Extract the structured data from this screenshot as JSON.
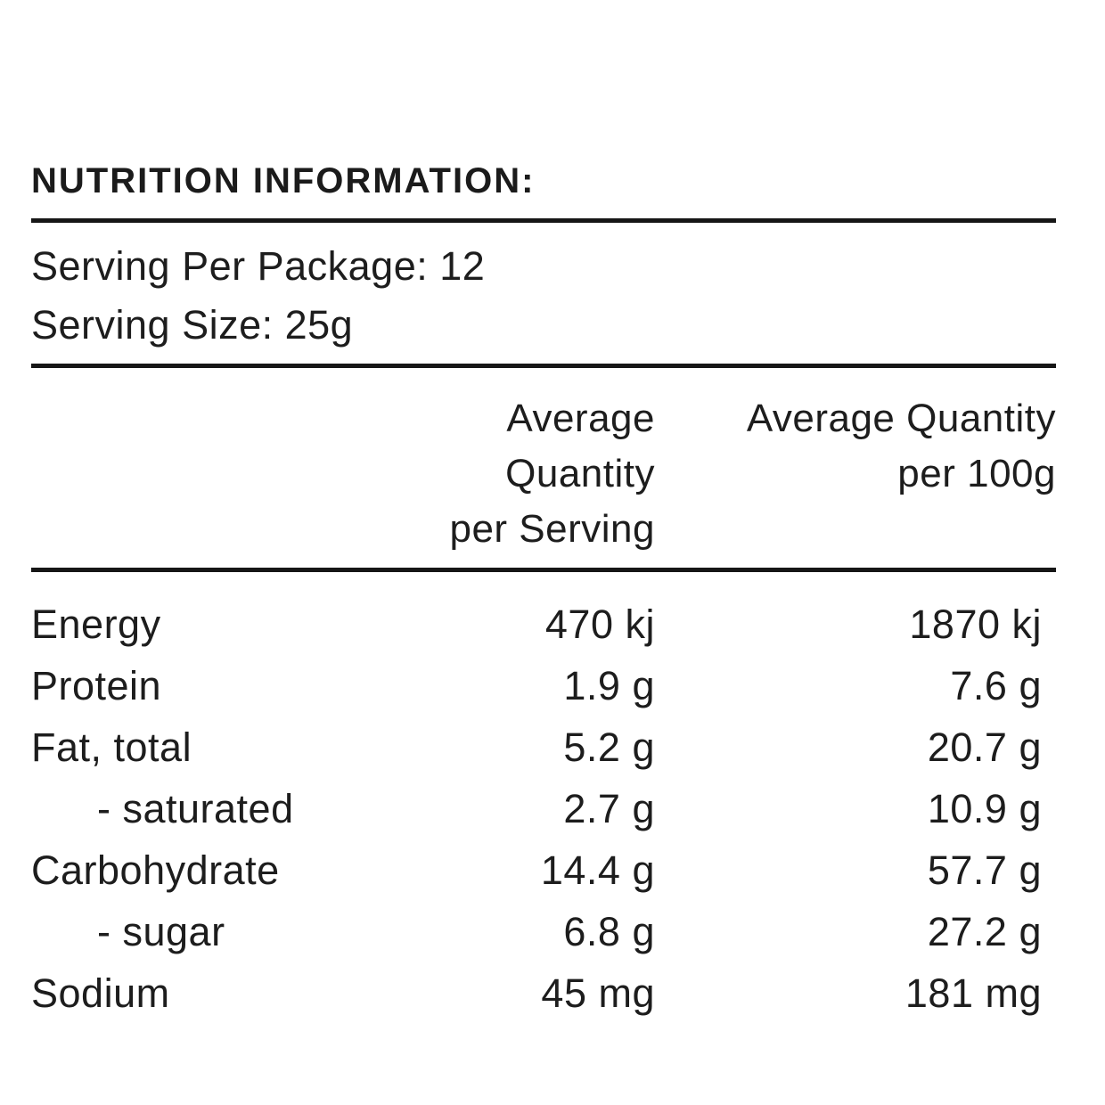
{
  "page": {
    "background_color": "#ffffff",
    "text_color": "#1d1d1d",
    "rule_color": "#161616"
  },
  "title": "NUTRITION INFORMATION:",
  "serving": {
    "per_package": "Serving Per Package: 12",
    "size": "Serving Size: 25g"
  },
  "table": {
    "column_headers": [
      {
        "line1": "Average Quantity",
        "line2": "per Serving"
      },
      {
        "line1": "Average Quantity",
        "line2": "per 100g"
      }
    ],
    "rows": [
      {
        "label": "Energy",
        "per_serving": "470 kj",
        "per_100g": "1870 kj"
      },
      {
        "label": "Protein",
        "per_serving": "1.9 g",
        "per_100g": "7.6 g"
      },
      {
        "label": "Fat, total",
        "per_serving": "5.2 g",
        "per_100g": "20.7 g"
      },
      {
        "label": "- saturated",
        "per_serving": "2.7 g",
        "per_100g": "10.9 g"
      },
      {
        "label": "Carbohydrate",
        "per_serving": "14.4 g",
        "per_100g": "57.7 g"
      },
      {
        "label": "- sugar",
        "per_serving": "6.8 g",
        "per_100g": "27.2 g"
      },
      {
        "label": "Sodium",
        "per_serving": "45 mg",
        "per_100g": "181 mg"
      }
    ]
  }
}
